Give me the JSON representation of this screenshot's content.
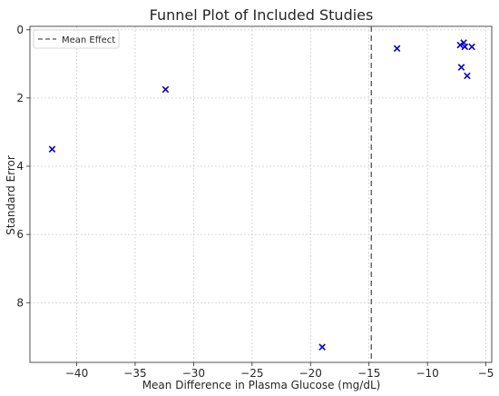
{
  "chart_data": {
    "type": "scatter",
    "title": "Funnel Plot of Included Studies",
    "xlabel": "Mean Difference in Plasma Glucose (mg/dL)",
    "ylabel": "Standard Error",
    "xlim": [
      -44,
      -4.5
    ],
    "ylim": [
      9.75,
      -0.1
    ],
    "y_inverted": true,
    "grid": true,
    "legend_position": "top-left",
    "x_ticks": [
      -40,
      -35,
      -30,
      -25,
      -20,
      -15,
      -10,
      -5
    ],
    "y_ticks": [
      0,
      2,
      4,
      6,
      8
    ],
    "x_tick_labels": [
      "−40",
      "−35",
      "−30",
      "−25",
      "−20",
      "−15",
      "−10",
      "−5"
    ],
    "y_tick_labels": [
      "0",
      "2",
      "4",
      "6",
      "8"
    ],
    "series": [
      {
        "name": "",
        "marker": "x",
        "color": "#0000cc",
        "points": [
          {
            "x": -42.1,
            "y": 3.5
          },
          {
            "x": -32.4,
            "y": 1.75
          },
          {
            "x": -19.0,
            "y": 9.3
          },
          {
            "x": -12.6,
            "y": 0.55
          },
          {
            "x": -7.2,
            "y": 0.45
          },
          {
            "x": -6.9,
            "y": 0.38
          },
          {
            "x": -6.8,
            "y": 0.5
          },
          {
            "x": -6.2,
            "y": 0.5
          },
          {
            "x": -7.1,
            "y": 1.1
          },
          {
            "x": -6.6,
            "y": 1.35
          }
        ]
      }
    ],
    "reference_line": {
      "name": "Mean Effect",
      "x": -14.8,
      "style": "dashed",
      "color": "#555555"
    }
  }
}
